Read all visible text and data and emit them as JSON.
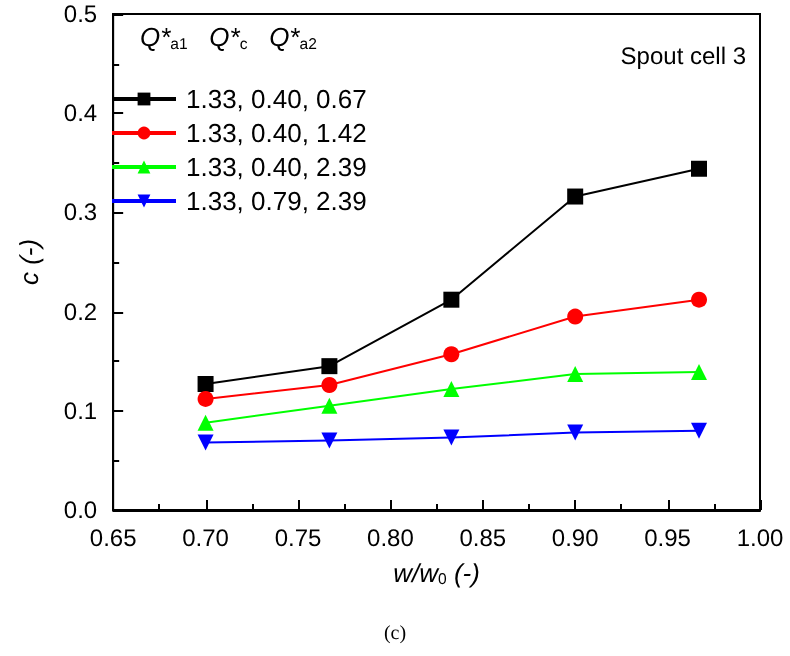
{
  "chart_data": {
    "type": "line",
    "xlabel": "w/w$_{0}$ (-)",
    "ylabel": "c (-)",
    "legend_title": "Q*$_{a1}$   Q*$_{c}$   Q*$_{a2}$",
    "annotations": [
      "Spout cell 3",
      "(c)"
    ],
    "x": [
      0.7,
      0.767,
      0.833,
      0.9,
      0.967
    ],
    "series": [
      {
        "name": "1.33, 0.40, 0.67",
        "color": "#000000",
        "marker": "square",
        "values": [
          0.127,
          0.145,
          0.212,
          0.316,
          0.344
        ]
      },
      {
        "name": "1.33, 0.40, 1.42",
        "color": "#ff0000",
        "marker": "circle",
        "values": [
          0.112,
          0.126,
          0.157,
          0.195,
          0.212
        ]
      },
      {
        "name": "1.33, 0.40, 2.39",
        "color": "#00ff00",
        "marker": "triangle",
        "values": [
          0.088,
          0.105,
          0.122,
          0.137,
          0.139
        ]
      },
      {
        "name": "1.33, 0.79, 2.39",
        "color": "#0000ff",
        "marker": "triangle-down",
        "values": [
          0.068,
          0.07,
          0.073,
          0.078,
          0.08
        ]
      }
    ],
    "xlim": [
      0.65,
      1.0
    ],
    "xticks": [
      {
        "value": 0.65,
        "label": "0.65"
      },
      {
        "value": 0.7,
        "label": "0.70"
      },
      {
        "value": 0.75,
        "label": "0.75"
      },
      {
        "value": 0.8,
        "label": "0.80"
      },
      {
        "value": 0.85,
        "label": "0.85"
      },
      {
        "value": 0.9,
        "label": "0.90"
      },
      {
        "value": 0.95,
        "label": "0.95"
      },
      {
        "value": 1.0,
        "label": "1.00"
      }
    ],
    "ylim": [
      0,
      0.5
    ],
    "yticks": [
      {
        "value": 0,
        "label": "0.0"
      },
      {
        "value": 0.1,
        "label": "0.1"
      },
      {
        "value": 0.2,
        "label": "0.2"
      },
      {
        "value": 0.3,
        "label": "0.3"
      },
      {
        "value": 0.4,
        "label": "0.4"
      },
      {
        "value": 0.5,
        "label": "0.5"
      }
    ],
    "legend": "top left",
    "grid": false,
    "line_style": "solid"
  }
}
